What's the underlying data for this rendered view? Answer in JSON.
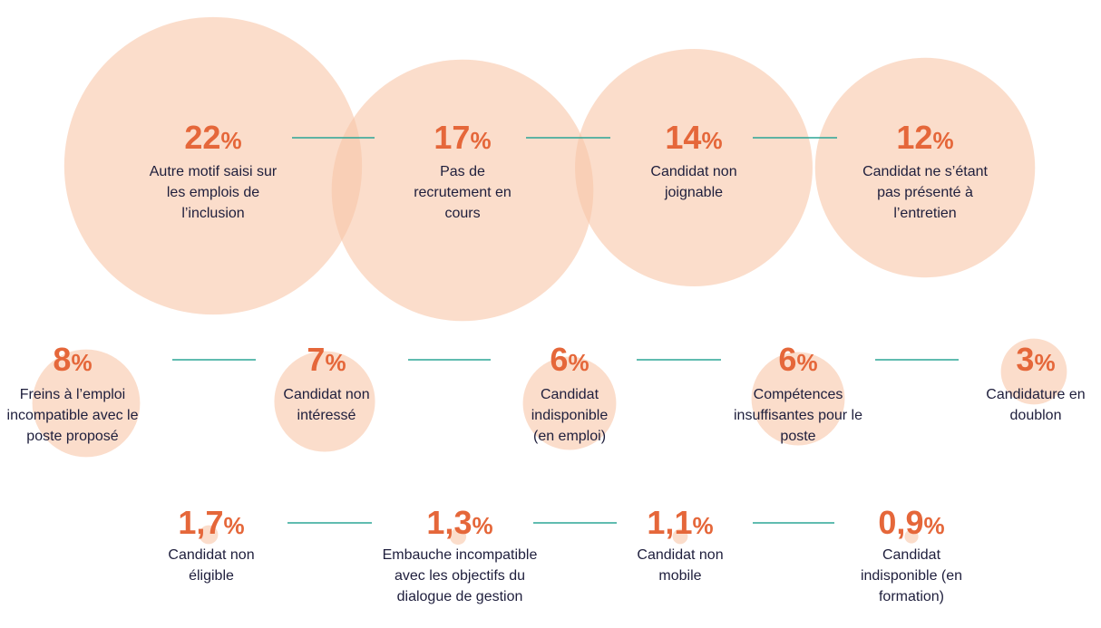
{
  "chart_data": {
    "type": "bubble",
    "categories": [
      "Autre motif saisi sur les emplois de l’inclusion",
      "Pas de recrutement en cours",
      "Candidat non joignable",
      "Candidat ne s’étant pas présenté à l’entretien",
      "Freins à l’emploi incompatible avec le poste proposé",
      "Candidat non intéressé",
      "Candidat indisponible (en emploi)",
      "Compétences insuffisantes pour le poste",
      "Candidature en doublon",
      "Candidat non éligible",
      "Embauche incompatible avec les objectifs du dialogue de gestion",
      "Candidat non mobile",
      "Candidat indisponible (en formation)"
    ],
    "values": [
      22,
      17,
      14,
      12,
      8,
      7,
      6,
      6,
      3,
      1.7,
      1.3,
      1.1,
      0.9
    ],
    "value_labels": [
      "22%",
      "17%",
      "14%",
      "12%",
      "8%",
      "7%",
      "6%",
      "6%",
      "3%",
      "1,7%",
      "1,3%",
      "1,1%",
      "0,9%"
    ],
    "color": "#f8c6a8",
    "line_color": "#2ba596"
  }
}
